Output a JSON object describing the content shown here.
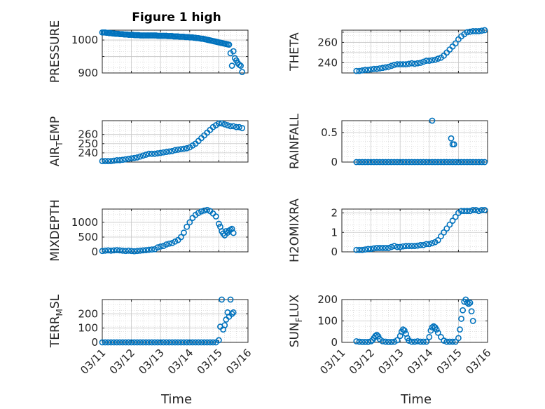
{
  "figure": {
    "title": "Figure 1 high",
    "xlabel": "Time"
  },
  "colors": {
    "marker": "#0072BD",
    "axis": "#262626",
    "grid": "#c8c8c8"
  },
  "chart_data": [
    {
      "type": "scatter",
      "ylabel": "PRESSURE",
      "ylim": [
        900,
        1030
      ],
      "yticks": [
        900,
        950,
        1000
      ],
      "yticklabels": [
        "900",
        "",
        "1000"
      ],
      "xlim": [
        0,
        5
      ],
      "xticks": [
        0,
        1,
        2,
        3,
        4,
        5
      ],
      "xticklabels": [
        "03/11",
        "03/12",
        "03/13",
        "03/14",
        "03/15",
        "03/16"
      ],
      "grid": true,
      "show_xticklabels": false,
      "x": [
        0,
        0.05,
        0.1,
        0.15,
        0.2,
        0.25,
        0.3,
        0.35,
        0.4,
        0.45,
        0.5,
        0.55,
        0.6,
        0.65,
        0.7,
        0.75,
        0.8,
        0.85,
        0.9,
        0.95,
        1,
        1.05,
        1.1,
        1.15,
        1.2,
        1.25,
        1.3,
        1.35,
        1.4,
        1.45,
        1.5,
        1.55,
        1.6,
        1.65,
        1.7,
        1.75,
        1.8,
        1.85,
        1.9,
        1.95,
        2,
        2.05,
        2.1,
        2.15,
        2.2,
        2.25,
        2.3,
        2.35,
        2.4,
        2.45,
        2.5,
        2.55,
        2.6,
        2.65,
        2.7,
        2.75,
        2.8,
        2.85,
        2.9,
        2.95,
        3,
        3.05,
        3.1,
        3.15,
        3.2,
        3.25,
        3.3,
        3.35,
        3.4,
        3.45,
        3.5,
        3.55,
        3.6,
        3.65,
        3.7,
        3.75,
        3.8,
        3.85,
        3.9,
        3.95,
        4,
        4.05,
        4.1,
        4.15,
        4.2,
        4.25,
        4.3,
        4.35,
        4.4,
        4.45,
        4.5,
        4.55,
        4.6,
        4.65,
        4.7,
        4.75,
        4.8
      ],
      "y": [
        1023,
        1023,
        1023,
        1022,
        1022,
        1021,
        1021,
        1020,
        1020,
        1019,
        1019,
        1019,
        1018,
        1018,
        1018,
        1017,
        1017,
        1017,
        1016,
        1016,
        1016,
        1016,
        1015,
        1015,
        1015,
        1015,
        1014,
        1014,
        1014,
        1014,
        1014,
        1014,
        1014,
        1014,
        1014,
        1014,
        1014,
        1014,
        1013,
        1013,
        1013,
        1013,
        1013,
        1013,
        1013,
        1012,
        1012,
        1012,
        1012,
        1011,
        1011,
        1011,
        1011,
        1010,
        1010,
        1010,
        1010,
        1009,
        1009,
        1009,
        1008,
        1008,
        1008,
        1007,
        1007,
        1006,
        1006,
        1005,
        1004,
        1004,
        1003,
        1002,
        1001,
        1000,
        999,
        998,
        997,
        996,
        995,
        994,
        993,
        992,
        991,
        990,
        989,
        988,
        987,
        986,
        960,
        922,
        966,
        945,
        938,
        930,
        925,
        922,
        903
      ]
    },
    {
      "type": "scatter",
      "ylabel": "THETA",
      "ylim": [
        230,
        272
      ],
      "yticks": [
        240,
        250,
        260,
        270
      ],
      "yticklabels": [
        "240",
        "",
        "260",
        ""
      ],
      "xlim": [
        0,
        5
      ],
      "xticks": [
        0,
        1,
        2,
        3,
        4,
        5
      ],
      "xticklabels": [
        "03/11",
        "03/12",
        "03/13",
        "03/14",
        "03/15",
        "03/16"
      ],
      "grid": true,
      "show_xticklabels": false,
      "x": [
        0.5,
        0.6,
        0.7,
        0.8,
        0.9,
        1,
        1.1,
        1.2,
        1.3,
        1.4,
        1.5,
        1.6,
        1.7,
        1.8,
        1.9,
        2,
        2.1,
        2.2,
        2.3,
        2.4,
        2.5,
        2.6,
        2.7,
        2.8,
        2.9,
        3,
        3.1,
        3.2,
        3.3,
        3.4,
        3.5,
        3.6,
        3.7,
        3.8,
        3.9,
        4,
        4.1,
        4.2,
        4.3,
        4.4,
        4.5,
        4.6,
        4.7,
        4.8,
        4.9
      ],
      "y": [
        232,
        232,
        232.5,
        233,
        233,
        233.5,
        234,
        234,
        234.5,
        235,
        235.5,
        236,
        237,
        238,
        238.5,
        238.5,
        238.5,
        238.5,
        239,
        239.5,
        239,
        239.5,
        240,
        241,
        242,
        242,
        242.5,
        243,
        244,
        245,
        247,
        250,
        253,
        256,
        259,
        263,
        266,
        268,
        270,
        270.5,
        271,
        271,
        271,
        271.5,
        272
      ]
    },
    {
      "type": "scatter",
      "ylabel": "AIR_TEMP",
      "ylim": [
        230,
        275
      ],
      "yticks": [
        240,
        250,
        260
      ],
      "yticklabels": [
        "240",
        "250",
        "260"
      ],
      "xlim": [
        0,
        5
      ],
      "xticks": [
        0,
        1,
        2,
        3,
        4,
        5
      ],
      "xticklabels": [
        "03/11",
        "03/12",
        "03/13",
        "03/14",
        "03/15",
        "03/16"
      ],
      "grid": true,
      "show_xticklabels": false,
      "x": [
        0,
        0.1,
        0.2,
        0.3,
        0.4,
        0.5,
        0.6,
        0.7,
        0.8,
        0.9,
        1,
        1.1,
        1.2,
        1.3,
        1.4,
        1.5,
        1.6,
        1.7,
        1.8,
        1.9,
        2,
        2.1,
        2.2,
        2.3,
        2.4,
        2.5,
        2.6,
        2.7,
        2.8,
        2.9,
        3,
        3.1,
        3.2,
        3.3,
        3.4,
        3.5,
        3.6,
        3.7,
        3.8,
        3.9,
        4,
        4.1,
        4.2,
        4.3,
        4.4,
        4.5,
        4.6,
        4.7,
        4.8
      ],
      "y": [
        231,
        231,
        231,
        231,
        231.5,
        232,
        232,
        232.5,
        233,
        233.5,
        234,
        234.5,
        235,
        236,
        237,
        238,
        239,
        239,
        239,
        239.5,
        240,
        240.5,
        241,
        241.5,
        242,
        243,
        243.5,
        244,
        244.5,
        245,
        246,
        248,
        250,
        253,
        256,
        259,
        262,
        265,
        268,
        270,
        272,
        272,
        271,
        270,
        269,
        269,
        268,
        268,
        267
      ]
    },
    {
      "type": "scatter",
      "ylabel": "RAINFALL",
      "ylim": [
        0,
        0.7
      ],
      "yticks": [
        0,
        0.5
      ],
      "yticklabels": [
        "0",
        "0.5"
      ],
      "xlim": [
        0,
        5
      ],
      "xticks": [
        0,
        1,
        2,
        3,
        4,
        5
      ],
      "xticklabels": [
        "03/11",
        "03/12",
        "03/13",
        "03/14",
        "03/15",
        "03/16"
      ],
      "grid": true,
      "show_xticklabels": false,
      "x": [
        0.5,
        0.6,
        0.7,
        0.8,
        0.9,
        1,
        1.1,
        1.2,
        1.3,
        1.4,
        1.5,
        1.6,
        1.7,
        1.8,
        1.9,
        2,
        2.1,
        2.2,
        2.3,
        2.4,
        2.5,
        2.6,
        2.7,
        2.8,
        2.9,
        3,
        3.1,
        3.2,
        3.3,
        3.4,
        3.5,
        3.6,
        3.7,
        3.8,
        3.9,
        4,
        4.1,
        4.2,
        4.3,
        4.4,
        4.5,
        4.6,
        4.7,
        4.8,
        4.9,
        3.1,
        3.75,
        3.8,
        3.85
      ],
      "y": [
        0,
        0,
        0,
        0,
        0,
        0,
        0,
        0,
        0,
        0,
        0,
        0,
        0,
        0,
        0,
        0,
        0,
        0,
        0,
        0,
        0,
        0,
        0,
        0,
        0,
        0,
        0,
        0,
        0,
        0,
        0,
        0,
        0,
        0,
        0,
        0,
        0,
        0,
        0,
        0,
        0,
        0,
        0,
        0,
        0,
        0.7,
        0.4,
        0.3,
        0.3
      ]
    },
    {
      "type": "scatter",
      "ylabel": "MIXDEPTH",
      "ylim": [
        0,
        1450
      ],
      "yticks": [
        0,
        500,
        1000
      ],
      "yticklabels": [
        "0",
        "500",
        "1000"
      ],
      "xlim": [
        0,
        5
      ],
      "xticks": [
        0,
        1,
        2,
        3,
        4,
        5
      ],
      "xticklabels": [
        "03/11",
        "03/12",
        "03/13",
        "03/14",
        "03/15",
        "03/16"
      ],
      "grid": true,
      "show_xticklabels": false,
      "x": [
        0,
        0.1,
        0.2,
        0.3,
        0.4,
        0.5,
        0.6,
        0.7,
        0.8,
        0.9,
        1,
        1.1,
        1.2,
        1.3,
        1.4,
        1.5,
        1.6,
        1.7,
        1.8,
        1.9,
        2,
        2.1,
        2.2,
        2.3,
        2.4,
        2.5,
        2.6,
        2.7,
        2.8,
        2.9,
        3,
        3.1,
        3.2,
        3.3,
        3.4,
        3.5,
        3.6,
        3.7,
        3.8,
        3.9,
        4,
        4.05,
        4.1,
        4.15,
        4.2,
        4.25,
        4.3,
        4.35,
        4.4,
        4.45,
        4.5
      ],
      "y": [
        30,
        40,
        50,
        40,
        50,
        60,
        50,
        40,
        30,
        40,
        30,
        20,
        30,
        40,
        50,
        60,
        70,
        80,
        90,
        150,
        180,
        200,
        250,
        280,
        300,
        350,
        400,
        500,
        650,
        850,
        1000,
        1150,
        1250,
        1320,
        1370,
        1400,
        1420,
        1380,
        1300,
        1200,
        950,
        850,
        700,
        620,
        560,
        700,
        650,
        720,
        750,
        780,
        640
      ]
    },
    {
      "type": "scatter",
      "ylabel": "H2OMIXRA",
      "ylim": [
        0,
        2.2
      ],
      "yticks": [
        0,
        1,
        2
      ],
      "yticklabels": [
        "0",
        "1",
        "2"
      ],
      "xlim": [
        0,
        5
      ],
      "xticks": [
        0,
        1,
        2,
        3,
        4,
        5
      ],
      "xticklabels": [
        "03/11",
        "03/12",
        "03/13",
        "03/14",
        "03/15",
        "03/16"
      ],
      "grid": true,
      "show_xticklabels": false,
      "x": [
        0.5,
        0.6,
        0.7,
        0.8,
        0.9,
        1,
        1.1,
        1.2,
        1.3,
        1.4,
        1.5,
        1.6,
        1.7,
        1.8,
        1.9,
        2,
        2.1,
        2.2,
        2.3,
        2.4,
        2.5,
        2.6,
        2.7,
        2.8,
        2.9,
        3,
        3.1,
        3.2,
        3.3,
        3.4,
        3.5,
        3.6,
        3.7,
        3.8,
        3.9,
        4,
        4.1,
        4.2,
        4.3,
        4.4,
        4.5,
        4.6,
        4.7,
        4.8,
        4.9
      ],
      "y": [
        0.1,
        0.1,
        0.1,
        0.12,
        0.15,
        0.15,
        0.18,
        0.2,
        0.2,
        0.2,
        0.2,
        0.2,
        0.25,
        0.3,
        0.25,
        0.25,
        0.28,
        0.3,
        0.3,
        0.3,
        0.3,
        0.32,
        0.35,
        0.35,
        0.4,
        0.4,
        0.45,
        0.5,
        0.6,
        0.8,
        1.0,
        1.2,
        1.4,
        1.6,
        1.8,
        2.0,
        2.1,
        2.1,
        2.1,
        2.1,
        2.15,
        2.15,
        2.1,
        2.15,
        2.15
      ]
    },
    {
      "type": "scatter",
      "ylabel": "TERR_MSL",
      "ylim": [
        0,
        300
      ],
      "yticks": [
        0,
        100,
        200
      ],
      "yticklabels": [
        "0",
        "100",
        "200"
      ],
      "xlim": [
        0,
        5
      ],
      "xticks": [
        0,
        1,
        2,
        3,
        4,
        5
      ],
      "xticklabels": [
        "03/11",
        "03/12",
        "03/13",
        "03/14",
        "03/15",
        "03/16"
      ],
      "grid": true,
      "show_xticklabels": true,
      "x": [
        0,
        0.1,
        0.2,
        0.3,
        0.4,
        0.5,
        0.6,
        0.7,
        0.8,
        0.9,
        1,
        1.1,
        1.2,
        1.3,
        1.4,
        1.5,
        1.6,
        1.7,
        1.8,
        1.9,
        2,
        2.1,
        2.2,
        2.3,
        2.4,
        2.5,
        2.6,
        2.7,
        2.8,
        2.9,
        3,
        3.1,
        3.2,
        3.3,
        3.4,
        3.5,
        3.6,
        3.7,
        3.8,
        3.9,
        4,
        4.05,
        4.1,
        4.15,
        4.2,
        4.25,
        4.3,
        4.35,
        4.4,
        4.45,
        4.5
      ],
      "y": [
        0,
        0,
        0,
        0,
        0,
        0,
        0,
        0,
        0,
        0,
        0,
        0,
        0,
        0,
        0,
        0,
        0,
        0,
        0,
        0,
        0,
        0,
        0,
        0,
        0,
        0,
        0,
        0,
        0,
        0,
        0,
        0,
        0,
        0,
        0,
        0,
        0,
        0,
        0,
        0,
        15,
        110,
        300,
        90,
        120,
        160,
        210,
        180,
        300,
        200,
        210
      ]
    },
    {
      "type": "scatter",
      "ylabel": "SUN_FLUX",
      "ylim": [
        0,
        200
      ],
      "yticks": [
        0,
        100,
        200
      ],
      "yticklabels": [
        "0",
        "100",
        "200"
      ],
      "xlim": [
        0,
        5
      ],
      "xticks": [
        0,
        1,
        2,
        3,
        4,
        5
      ],
      "xticklabels": [
        "03/11",
        "03/12",
        "03/13",
        "03/14",
        "03/15",
        "03/16"
      ],
      "grid": true,
      "show_xticklabels": true,
      "x": [
        0.5,
        0.6,
        0.7,
        0.8,
        0.9,
        1,
        1.05,
        1.1,
        1.15,
        1.2,
        1.25,
        1.3,
        1.4,
        1.5,
        1.6,
        1.7,
        1.8,
        1.9,
        2,
        2.05,
        2.1,
        2.15,
        2.2,
        2.25,
        2.3,
        2.4,
        2.5,
        2.6,
        2.7,
        2.8,
        2.9,
        3,
        3.05,
        3.1,
        3.15,
        3.2,
        3.25,
        3.3,
        3.4,
        3.5,
        3.6,
        3.7,
        3.8,
        3.9,
        4,
        4.05,
        4.1,
        4.15,
        4.2,
        4.25,
        4.3,
        4.35,
        4.4,
        4.45,
        4.5
      ],
      "y": [
        5,
        3,
        2,
        2,
        2,
        5,
        10,
        20,
        30,
        35,
        28,
        15,
        5,
        3,
        2,
        2,
        3,
        10,
        30,
        50,
        60,
        55,
        40,
        20,
        8,
        3,
        3,
        5,
        3,
        3,
        3,
        25,
        55,
        70,
        75,
        70,
        60,
        45,
        25,
        8,
        3,
        3,
        3,
        3,
        20,
        60,
        110,
        150,
        190,
        200,
        185,
        180,
        185,
        145,
        100
      ]
    }
  ]
}
